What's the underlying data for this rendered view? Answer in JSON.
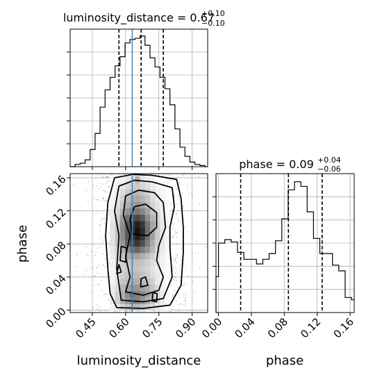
{
  "chart_data": [
    {
      "type": "histogram",
      "title_param": "luminosity_distance",
      "title_value": "0.67",
      "title_plus": "+0.10",
      "title_minus": "−0.10",
      "xlim": [
        0.35,
        0.97
      ],
      "ylim": [
        0,
        120
      ],
      "grid": true,
      "bin_edges": [
        0.35,
        0.3725,
        0.395,
        0.4175,
        0.44,
        0.4625,
        0.485,
        0.5075,
        0.53,
        0.5525,
        0.575,
        0.5975,
        0.62,
        0.6425,
        0.665,
        0.6875,
        0.71,
        0.7325,
        0.755,
        0.7775,
        0.8,
        0.8225,
        0.845,
        0.8675,
        0.89,
        0.9125,
        0.935,
        0.9575,
        0.97
      ],
      "counts": [
        0,
        2,
        3,
        6,
        15,
        29,
        52,
        67,
        78,
        88,
        96,
        108,
        111,
        112,
        114,
        106,
        95,
        87,
        78,
        68,
        54,
        33,
        17,
        9,
        4,
        2,
        1,
        0
      ],
      "quantile_lines": [
        0.57,
        0.67,
        0.77
      ],
      "truth": 0.63
    },
    {
      "type": "histogram",
      "title_param": "phase",
      "title_value": "0.09",
      "title_plus": "+0.04",
      "title_minus": "−0.06",
      "xlim": [
        -0.003,
        0.165
      ],
      "ylim": [
        0,
        120
      ],
      "grid": true,
      "bin_edges": [
        -0.003,
        0.0,
        0.0077,
        0.0154,
        0.0231,
        0.0308,
        0.0385,
        0.0462,
        0.0539,
        0.0616,
        0.0693,
        0.077,
        0.0847,
        0.0924,
        0.1001,
        0.1078,
        0.1155,
        0.1232,
        0.1309,
        0.1386,
        0.1463,
        0.154,
        0.1617,
        0.165
      ],
      "counts": [
        31,
        60,
        63,
        61,
        52,
        46,
        46,
        42,
        46,
        51,
        62,
        81,
        106,
        113,
        109,
        87,
        64,
        51,
        51,
        41,
        36,
        13,
        11
      ],
      "quantile_lines": [
        0.027,
        0.085,
        0.126
      ]
    },
    {
      "type": "hist2d",
      "x_param": "luminosity_distance",
      "y_param": "phase",
      "xlabel": "luminosity_distance",
      "ylabel": "phase",
      "xlim": [
        0.35,
        0.97
      ],
      "ylim": [
        -0.003,
        0.165
      ],
      "grid": true,
      "truth_x": 0.63,
      "x_ticks": [
        0.45,
        0.6,
        0.75,
        0.9
      ],
      "x_tick_labels": [
        "0.45",
        "0.60",
        "0.75",
        "0.90"
      ],
      "y_ticks": [
        0.0,
        0.04,
        0.08,
        0.12,
        0.16
      ],
      "y_tick_labels": [
        "0.00",
        "0.04",
        "0.08",
        "0.12",
        "0.16"
      ],
      "cell_x_edges": [
        0.53,
        0.5525,
        0.575,
        0.5975,
        0.62,
        0.6425,
        0.665,
        0.6875,
        0.71,
        0.7325,
        0.755,
        0.7775,
        0.8
      ],
      "cell_y_edges": [
        0.0,
        0.0077,
        0.0154,
        0.0231,
        0.0308,
        0.0385,
        0.0462,
        0.0539,
        0.0616,
        0.0693,
        0.077,
        0.0847,
        0.0924,
        0.1001,
        0.1078,
        0.1155,
        0.1232,
        0.1309,
        0.1386,
        0.1463,
        0.154,
        0.1617
      ],
      "density_rows": [
        [
          0.05,
          0.1,
          0.2,
          0.25,
          0.3,
          0.3,
          0.25,
          0.2,
          0.15,
          0.1,
          0.05,
          0.02
        ],
        [
          0.1,
          0.2,
          0.35,
          0.45,
          0.55,
          0.55,
          0.45,
          0.35,
          0.25,
          0.15,
          0.08,
          0.03
        ],
        [
          0.1,
          0.2,
          0.35,
          0.5,
          0.6,
          0.55,
          0.5,
          0.4,
          0.3,
          0.15,
          0.08,
          0.03
        ],
        [
          0.08,
          0.15,
          0.3,
          0.4,
          0.45,
          0.45,
          0.4,
          0.35,
          0.25,
          0.15,
          0.05,
          0.02
        ],
        [
          0.05,
          0.12,
          0.25,
          0.3,
          0.35,
          0.35,
          0.3,
          0.25,
          0.2,
          0.1,
          0.05,
          0.02
        ],
        [
          0.05,
          0.1,
          0.2,
          0.25,
          0.3,
          0.3,
          0.25,
          0.2,
          0.15,
          0.1,
          0.05,
          0.02
        ],
        [
          0.05,
          0.1,
          0.18,
          0.22,
          0.25,
          0.25,
          0.22,
          0.18,
          0.12,
          0.08,
          0.04,
          0.02
        ],
        [
          0.05,
          0.12,
          0.2,
          0.25,
          0.28,
          0.28,
          0.25,
          0.2,
          0.15,
          0.1,
          0.05,
          0.02
        ],
        [
          0.08,
          0.15,
          0.25,
          0.35,
          0.4,
          0.4,
          0.35,
          0.28,
          0.2,
          0.12,
          0.06,
          0.03
        ],
        [
          0.1,
          0.2,
          0.35,
          0.5,
          0.6,
          0.65,
          0.55,
          0.45,
          0.3,
          0.18,
          0.08,
          0.03
        ],
        [
          0.12,
          0.25,
          0.45,
          0.65,
          0.8,
          0.85,
          0.75,
          0.55,
          0.35,
          0.2,
          0.1,
          0.04
        ],
        [
          0.12,
          0.25,
          0.5,
          0.7,
          0.85,
          0.95,
          0.85,
          0.6,
          0.4,
          0.22,
          0.1,
          0.04
        ],
        [
          0.12,
          0.25,
          0.5,
          0.72,
          0.88,
          1.0,
          0.9,
          0.62,
          0.4,
          0.22,
          0.1,
          0.04
        ],
        [
          0.12,
          0.25,
          0.48,
          0.7,
          0.85,
          0.95,
          0.85,
          0.6,
          0.38,
          0.2,
          0.1,
          0.04
        ],
        [
          0.1,
          0.22,
          0.42,
          0.6,
          0.72,
          0.78,
          0.7,
          0.5,
          0.32,
          0.18,
          0.08,
          0.03
        ],
        [
          0.08,
          0.18,
          0.32,
          0.45,
          0.55,
          0.58,
          0.52,
          0.4,
          0.25,
          0.15,
          0.07,
          0.03
        ],
        [
          0.06,
          0.14,
          0.25,
          0.35,
          0.42,
          0.45,
          0.4,
          0.3,
          0.2,
          0.12,
          0.05,
          0.02
        ],
        [
          0.05,
          0.1,
          0.2,
          0.28,
          0.35,
          0.38,
          0.32,
          0.25,
          0.15,
          0.1,
          0.04,
          0.02
        ],
        [
          0.03,
          0.08,
          0.15,
          0.22,
          0.28,
          0.3,
          0.26,
          0.2,
          0.12,
          0.06,
          0.03,
          0.01
        ],
        [
          0.02,
          0.05,
          0.1,
          0.15,
          0.2,
          0.22,
          0.18,
          0.14,
          0.08,
          0.04,
          0.02,
          0.01
        ],
        [
          0.01,
          0.03,
          0.06,
          0.1,
          0.15,
          0.35,
          0.12,
          0.08,
          0.05,
          0.02,
          0.01,
          0.0
        ]
      ],
      "contours": [
        [
          [
            0.56,
            0.003
          ],
          [
            0.68,
            0.002
          ],
          [
            0.8,
            0.006
          ],
          [
            0.85,
            0.03
          ],
          [
            0.86,
            0.07
          ],
          [
            0.86,
            0.1
          ],
          [
            0.85,
            0.135
          ],
          [
            0.83,
            0.158
          ],
          [
            0.72,
            0.163
          ],
          [
            0.63,
            0.164
          ],
          [
            0.55,
            0.16
          ],
          [
            0.52,
            0.13
          ],
          [
            0.51,
            0.09
          ],
          [
            0.52,
            0.05
          ],
          [
            0.53,
            0.02
          ]
        ],
        [
          [
            0.58,
            0.012
          ],
          [
            0.68,
            0.01
          ],
          [
            0.77,
            0.014
          ],
          [
            0.81,
            0.04
          ],
          [
            0.8,
            0.075
          ],
          [
            0.8,
            0.1
          ],
          [
            0.82,
            0.125
          ],
          [
            0.81,
            0.148
          ],
          [
            0.72,
            0.155
          ],
          [
            0.64,
            0.157
          ],
          [
            0.57,
            0.15
          ],
          [
            0.55,
            0.12
          ],
          [
            0.57,
            0.09
          ],
          [
            0.56,
            0.05
          ]
        ],
        [
          [
            0.6,
            0.022
          ],
          [
            0.68,
            0.018
          ],
          [
            0.75,
            0.024
          ],
          [
            0.77,
            0.04
          ],
          [
            0.74,
            0.06
          ],
          [
            0.75,
            0.078
          ],
          [
            0.78,
            0.1
          ],
          [
            0.77,
            0.13
          ],
          [
            0.73,
            0.142
          ],
          [
            0.66,
            0.145
          ],
          [
            0.6,
            0.138
          ],
          [
            0.59,
            0.115
          ],
          [
            0.62,
            0.09
          ],
          [
            0.6,
            0.065
          ],
          [
            0.62,
            0.04
          ]
        ],
        [
          [
            0.63,
            0.092
          ],
          [
            0.7,
            0.09
          ],
          [
            0.74,
            0.1
          ],
          [
            0.74,
            0.118
          ],
          [
            0.69,
            0.128
          ],
          [
            0.64,
            0.125
          ],
          [
            0.62,
            0.11
          ]
        ]
      ],
      "small_loops": [
        [
          [
            0.575,
            0.06
          ],
          [
            0.6,
            0.058
          ],
          [
            0.605,
            0.075
          ],
          [
            0.58,
            0.077
          ]
        ],
        [
          [
            0.668,
            0.028
          ],
          [
            0.7,
            0.03
          ],
          [
            0.69,
            0.04
          ],
          [
            0.67,
            0.038
          ]
        ],
        [
          [
            0.72,
            0.011
          ],
          [
            0.74,
            0.01
          ],
          [
            0.742,
            0.02
          ],
          [
            0.722,
            0.021
          ]
        ],
        [
          [
            0.56,
            0.044
          ],
          [
            0.58,
            0.046
          ],
          [
            0.57,
            0.055
          ]
        ]
      ]
    }
  ]
}
